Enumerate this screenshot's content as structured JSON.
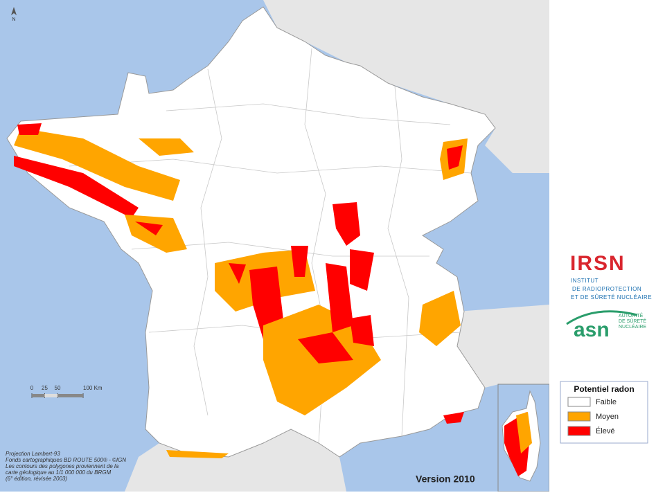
{
  "north_arrow": "N",
  "scale": {
    "ticks": [
      0,
      25,
      50,
      {
        "value": 100,
        "label": "100 Km"
      }
    ],
    "max": 100
  },
  "notes": [
    "Projection Lambert-93",
    "Fonds cartographiques BD ROUTE 500® - ©IGN",
    "Les contours des polygones proviennent de la",
    "carte géologique au 1/1 000 000 du BRGM",
    "(6° édition, révisée 2003)"
  ],
  "version": "Version 2010",
  "irsn": {
    "name": "IRSN",
    "lines": [
      "INSTITUT",
      "DE RADIOPROTECTION",
      "ET DE SÛRETÉ NUCLÉAIRE"
    ]
  },
  "asn": {
    "name": "asn",
    "lines": [
      "AUTORITÉ",
      "DE SÛRETÉ",
      "NUCLÉAIRE"
    ]
  },
  "legend": {
    "title": "Potentiel radon",
    "items": [
      {
        "label": "Faible",
        "color": "#ffffff"
      },
      {
        "label": "Moyen",
        "color": "#ffa500"
      },
      {
        "label": "Élevé",
        "color": "#ff0000"
      }
    ]
  }
}
